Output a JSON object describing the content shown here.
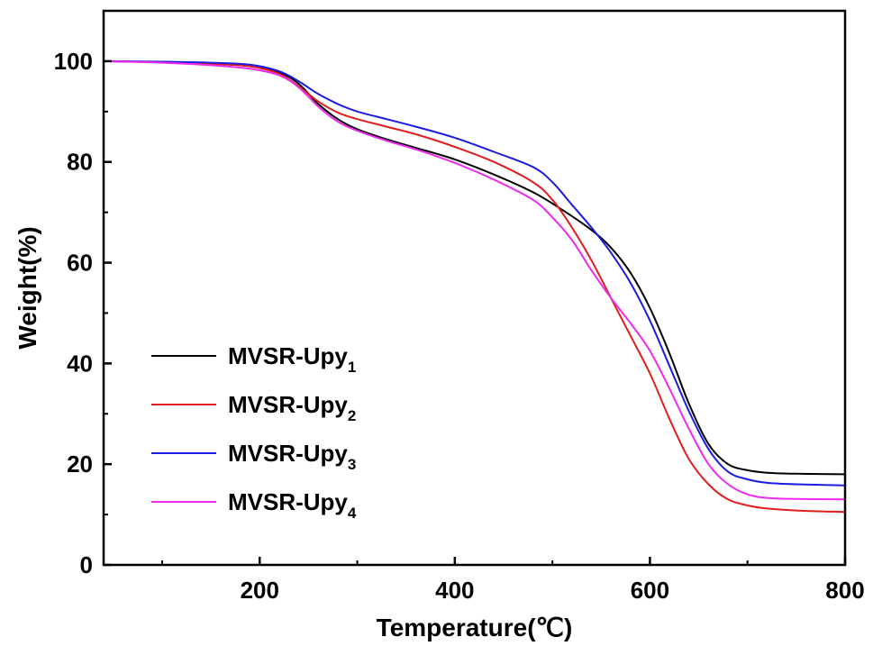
{
  "chart_data": {
    "type": "line",
    "title": "",
    "xlabel": "Temperature(℃)",
    "ylabel": "Weight(%)",
    "xlim": [
      40,
      800
    ],
    "ylim": [
      0,
      110
    ],
    "xticks": [
      200,
      400,
      600,
      800
    ],
    "yticks": [
      0,
      20,
      40,
      60,
      80,
      100
    ],
    "grid": false,
    "legend_position": "bottom-left",
    "series": [
      {
        "name": "MVSR-Upy",
        "subscript": "1",
        "color": "#000000",
        "x": [
          40,
          100,
          150,
          190,
          220,
          240,
          260,
          280,
          300,
          330,
          360,
          400,
          440,
          480,
          510,
          540,
          560,
          580,
          600,
          620,
          640,
          660,
          680,
          700,
          720,
          750,
          800
        ],
        "y": [
          100,
          99.8,
          99.5,
          99.0,
          97.8,
          95.5,
          91.5,
          88.5,
          86.5,
          84.5,
          82.8,
          80.5,
          77.5,
          74.0,
          70.5,
          66.5,
          63.0,
          58.0,
          51.0,
          42.0,
          32.0,
          24.0,
          20.0,
          18.8,
          18.3,
          18.1,
          18.0
        ]
      },
      {
        "name": "MVSR-Upy",
        "subscript": "2",
        "color": "#e01e1e",
        "x": [
          40,
          100,
          150,
          190,
          220,
          240,
          260,
          280,
          300,
          330,
          360,
          400,
          440,
          480,
          500,
          520,
          540,
          560,
          580,
          600,
          620,
          640,
          660,
          680,
          700,
          720,
          750,
          800
        ],
        "y": [
          100,
          99.8,
          99.5,
          99.0,
          97.5,
          95.0,
          92.0,
          89.8,
          88.5,
          87.0,
          85.5,
          83.0,
          80.0,
          76.0,
          72.5,
          67.0,
          60.5,
          53.0,
          45.5,
          38.0,
          29.0,
          21.0,
          16.0,
          13.0,
          11.8,
          11.2,
          10.8,
          10.5
        ]
      },
      {
        "name": "MVSR-Upy",
        "subscript": "3",
        "color": "#1c1ce0",
        "x": [
          40,
          100,
          150,
          190,
          220,
          240,
          260,
          280,
          300,
          330,
          360,
          400,
          440,
          480,
          500,
          520,
          540,
          560,
          580,
          600,
          620,
          640,
          660,
          680,
          700,
          720,
          750,
          800
        ],
        "y": [
          100,
          99.9,
          99.7,
          99.3,
          98.0,
          96.0,
          93.5,
          91.5,
          90.0,
          88.5,
          87.0,
          84.8,
          82.0,
          79.0,
          76.0,
          71.5,
          67.0,
          62.0,
          56.0,
          48.5,
          39.5,
          30.5,
          23.0,
          18.5,
          17.0,
          16.3,
          16.0,
          15.8
        ]
      },
      {
        "name": "MVSR-Upy",
        "subscript": "4",
        "color": "#ee2aee",
        "x": [
          40,
          100,
          150,
          190,
          220,
          240,
          260,
          280,
          300,
          330,
          360,
          400,
          440,
          480,
          500,
          520,
          540,
          560,
          580,
          600,
          620,
          640,
          660,
          680,
          700,
          720,
          750,
          800
        ],
        "y": [
          100,
          99.7,
          99.2,
          98.5,
          97.2,
          94.8,
          91.0,
          88.0,
          86.2,
          84.2,
          82.5,
          79.8,
          76.5,
          72.5,
          69.0,
          64.5,
          58.5,
          53.0,
          48.0,
          42.5,
          35.0,
          27.0,
          20.0,
          16.0,
          14.0,
          13.3,
          13.1,
          13.0
        ]
      }
    ]
  }
}
